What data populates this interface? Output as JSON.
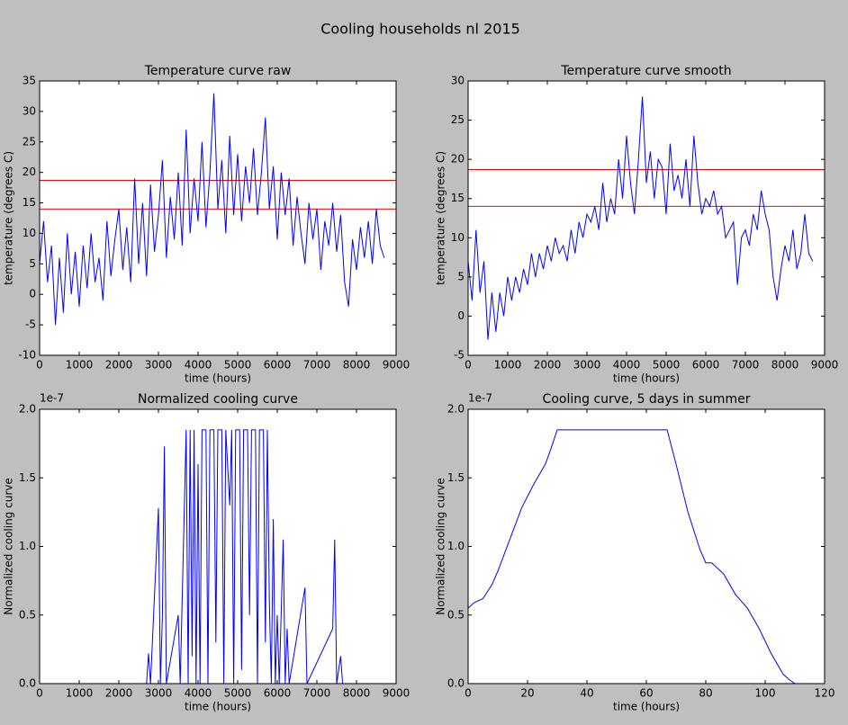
{
  "title": "Cooling households nl 2015",
  "chart_data": [
    {
      "type": "line",
      "title": "Temperature curve raw",
      "x_label": "time (hours)",
      "y_label": "temperature (degrees C)",
      "xlim": [
        0,
        9000
      ],
      "ylim": [
        -10,
        35
      ],
      "xticks": [
        0,
        1000,
        2000,
        3000,
        4000,
        5000,
        6000,
        7000,
        8000,
        9000
      ],
      "yticks": [
        -10,
        -5,
        0,
        5,
        10,
        15,
        20,
        25,
        30,
        35
      ],
      "hlines": [
        {
          "value": 18.7,
          "color": "#ff0000"
        },
        {
          "value": 14,
          "color": "#ff0000"
        }
      ],
      "x": [
        0,
        100,
        200,
        300,
        400,
        500,
        600,
        700,
        800,
        900,
        1000,
        1100,
        1200,
        1300,
        1400,
        1500,
        1600,
        1700,
        1800,
        1900,
        2000,
        2100,
        2200,
        2300,
        2400,
        2500,
        2600,
        2700,
        2800,
        2900,
        3000,
        3100,
        3200,
        3300,
        3400,
        3500,
        3600,
        3700,
        3800,
        3900,
        4000,
        4100,
        4200,
        4300,
        4400,
        4500,
        4600,
        4700,
        4800,
        4900,
        5000,
        5100,
        5200,
        5300,
        5400,
        5500,
        5600,
        5700,
        5800,
        5900,
        6000,
        6100,
        6200,
        6300,
        6400,
        6500,
        6600,
        6700,
        6800,
        6900,
        7000,
        7100,
        7200,
        7300,
        7400,
        7500,
        7600,
        7700,
        7800,
        7900,
        8000,
        8100,
        8200,
        8300,
        8400,
        8500,
        8600,
        8700
      ],
      "series": [
        {
          "color": "#0000ff",
          "values": [
            5,
            12,
            2,
            8,
            -5,
            6,
            -3,
            10,
            0,
            7,
            -2,
            8,
            1,
            10,
            2,
            6,
            -1,
            12,
            3,
            9,
            14,
            4,
            11,
            2,
            19,
            5,
            15,
            3,
            18,
            7,
            13,
            22,
            6,
            16,
            9,
            20,
            8,
            27,
            10,
            19,
            12,
            25,
            11,
            20,
            33,
            14,
            22,
            10,
            26,
            13,
            23,
            12,
            21,
            15,
            24,
            13,
            20,
            29,
            14,
            21,
            9,
            20,
            13,
            19,
            8,
            16,
            10,
            5,
            15,
            9,
            14,
            4,
            12,
            8,
            15,
            7,
            13,
            2,
            -2,
            9,
            4,
            11,
            6,
            12,
            5,
            14,
            8,
            6
          ]
        }
      ]
    },
    {
      "type": "line",
      "title": "Temperature curve smooth",
      "x_label": "time (hours)",
      "y_label": "temperature (degrees C)",
      "xlim": [
        0,
        9000
      ],
      "ylim": [
        -5,
        30
      ],
      "xticks": [
        0,
        1000,
        2000,
        3000,
        4000,
        5000,
        6000,
        7000,
        8000,
        9000
      ],
      "yticks": [
        -5,
        0,
        5,
        10,
        15,
        20,
        25,
        30
      ],
      "hlines": [
        {
          "value": 18.7,
          "color": "#ff0000"
        },
        {
          "value": 14,
          "color": "#ff0000"
        }
      ],
      "x": [
        0,
        100,
        200,
        300,
        400,
        500,
        600,
        700,
        800,
        900,
        1000,
        1100,
        1200,
        1300,
        1400,
        1500,
        1600,
        1700,
        1800,
        1900,
        2000,
        2100,
        2200,
        2300,
        2400,
        2500,
        2600,
        2700,
        2800,
        2900,
        3000,
        3100,
        3200,
        3300,
        3400,
        3500,
        3600,
        3700,
        3800,
        3900,
        4000,
        4100,
        4200,
        4300,
        4400,
        4500,
        4600,
        4700,
        4800,
        4900,
        5000,
        5100,
        5200,
        5300,
        5400,
        5500,
        5600,
        5700,
        5800,
        5900,
        6000,
        6100,
        6200,
        6300,
        6400,
        6500,
        6600,
        6700,
        6800,
        6900,
        7000,
        7100,
        7200,
        7300,
        7400,
        7500,
        7600,
        7700,
        7800,
        7900,
        8000,
        8100,
        8200,
        8300,
        8400,
        8500,
        8600,
        8700
      ],
      "series": [
        {
          "color": "#0000ff",
          "values": [
            7,
            2,
            11,
            3,
            7,
            -3,
            3,
            -2,
            3,
            0,
            5,
            2,
            5,
            3,
            6,
            4,
            8,
            5,
            8,
            6,
            9,
            7,
            10,
            8,
            9,
            7,
            11,
            8,
            12,
            10,
            13,
            12,
            14,
            11,
            17,
            12,
            15,
            13,
            20,
            15,
            23,
            17,
            13,
            20,
            28,
            17,
            21,
            15,
            20,
            19,
            13,
            22,
            16,
            18,
            15,
            20,
            14,
            23,
            17,
            13,
            15,
            14,
            16,
            13,
            14,
            10,
            11,
            12,
            4,
            10,
            11,
            9,
            13,
            11,
            16,
            13,
            11,
            5,
            2,
            6,
            9,
            7,
            11,
            6,
            8,
            13,
            8,
            7
          ]
        }
      ]
    },
    {
      "type": "line",
      "title": "Normalized cooling curve",
      "x_label": "time (hours)",
      "y_label": "Normalized cooling curve",
      "y_offset_label": "1e-7",
      "xlim": [
        0,
        9000
      ],
      "ylim": [
        0,
        2
      ],
      "xticks": [
        0,
        1000,
        2000,
        3000,
        4000,
        5000,
        6000,
        7000,
        8000,
        9000
      ],
      "yticks": [
        {
          "value": 0,
          "label": "0.0"
        },
        0.5,
        {
          "value": 1,
          "label": "1.0"
        },
        1.5,
        {
          "value": 2,
          "label": "2.0"
        }
      ],
      "x": [
        0,
        2700,
        2750,
        2800,
        3000,
        3050,
        3100,
        3150,
        3200,
        3500,
        3550,
        3700,
        3750,
        3800,
        3850,
        3900,
        3950,
        4000,
        4050,
        4100,
        4200,
        4250,
        4300,
        4400,
        4450,
        4500,
        4600,
        4650,
        4700,
        4800,
        4850,
        4900,
        4950,
        5050,
        5100,
        5150,
        5250,
        5300,
        5350,
        5450,
        5500,
        5550,
        5650,
        5700,
        5750,
        5800,
        5850,
        5900,
        5950,
        6000,
        6050,
        6150,
        6200,
        6250,
        6300,
        6700,
        6750,
        7400,
        7450,
        7500,
        7600,
        7650,
        7700
      ],
      "series": [
        {
          "color": "#0000ff",
          "values": [
            0,
            0,
            0.22,
            0,
            1.28,
            0,
            0.5,
            1.73,
            0,
            0.5,
            0,
            1.85,
            0,
            1.85,
            0.2,
            1.85,
            0,
            1.6,
            0,
            1.85,
            1.85,
            0,
            1.85,
            1.85,
            0.3,
            1.85,
            1.85,
            0,
            1.85,
            1.3,
            1.85,
            0,
            1.85,
            1.85,
            0.1,
            1.85,
            1.85,
            0.5,
            1.85,
            1.85,
            0,
            1.85,
            1.85,
            0.3,
            1.85,
            0.6,
            0,
            1.2,
            0,
            0.5,
            0,
            1.05,
            0,
            0.4,
            0,
            0.7,
            0,
            0.4,
            1.05,
            0,
            0.2,
            0,
            0
          ]
        }
      ]
    },
    {
      "type": "line",
      "title": "Cooling curve, 5 days in summer",
      "x_label": "time (hours)",
      "y_label": "Normalized cooling curve",
      "y_offset_label": "1e-7",
      "xlim": [
        0,
        120
      ],
      "ylim": [
        0,
        2
      ],
      "xticks": [
        0,
        20,
        40,
        60,
        80,
        100,
        120
      ],
      "yticks": [
        {
          "value": 0,
          "label": "0.0"
        },
        0.5,
        {
          "value": 1,
          "label": "1.0"
        },
        1.5,
        {
          "value": 2,
          "label": "2.0"
        }
      ],
      "x": [
        0,
        2,
        5,
        8,
        10,
        14,
        18,
        22,
        26,
        28,
        30,
        40,
        50,
        60,
        67,
        70,
        74,
        78,
        80,
        82,
        86,
        90,
        94,
        98,
        102,
        106,
        108,
        110
      ],
      "series": [
        {
          "color": "#0000ff",
          "values": [
            0.55,
            0.59,
            0.62,
            0.72,
            0.82,
            1.05,
            1.28,
            1.45,
            1.6,
            1.72,
            1.85,
            1.85,
            1.85,
            1.85,
            1.85,
            1.6,
            1.25,
            0.98,
            0.88,
            0.88,
            0.8,
            0.65,
            0.55,
            0.4,
            0.22,
            0.07,
            0.03,
            0
          ]
        }
      ]
    }
  ]
}
